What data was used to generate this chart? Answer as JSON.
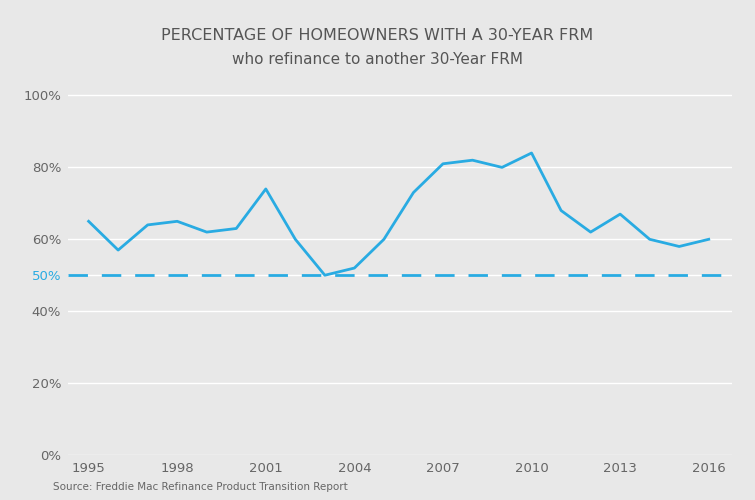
{
  "title_line1": "PERCENTAGE OF HOMEOWNERS WITH A 30-YEAR FRM",
  "title_line2": "who refinance to another 30-Year FRM",
  "source": "Source: Freddie Mac Refinance Product Transition Report",
  "x_values": [
    1995,
    1996,
    1997,
    1998,
    1999,
    2000,
    2001,
    2002,
    2003,
    2004,
    2005,
    2006,
    2007,
    2008,
    2009,
    2010,
    2011,
    2012,
    2013,
    2014,
    2015,
    2016
  ],
  "y_values": [
    0.65,
    0.57,
    0.64,
    0.65,
    0.62,
    0.63,
    0.74,
    0.6,
    0.5,
    0.52,
    0.6,
    0.73,
    0.81,
    0.82,
    0.8,
    0.84,
    0.68,
    0.62,
    0.67,
    0.6,
    0.58,
    0.6
  ],
  "line_color": "#29ABE2",
  "dashed_line_y": 0.5,
  "dashed_line_color": "#29ABE2",
  "background_color": "#E8E8E8",
  "grid_color": "#FFFFFF",
  "text_color": "#666666",
  "highlight_tick_color": "#29ABE2",
  "title_color": "#555555",
  "ytick_labels": [
    "0%",
    "20%",
    "40%",
    "50%",
    "60%",
    "80%",
    "100%"
  ],
  "ytick_values": [
    0.0,
    0.2,
    0.4,
    0.5,
    0.6,
    0.8,
    1.0
  ],
  "xtick_values": [
    1995,
    1998,
    2001,
    2004,
    2007,
    2010,
    2013,
    2016
  ],
  "xlim": [
    1994.3,
    2016.8
  ],
  "ylim": [
    0.0,
    1.05
  ]
}
